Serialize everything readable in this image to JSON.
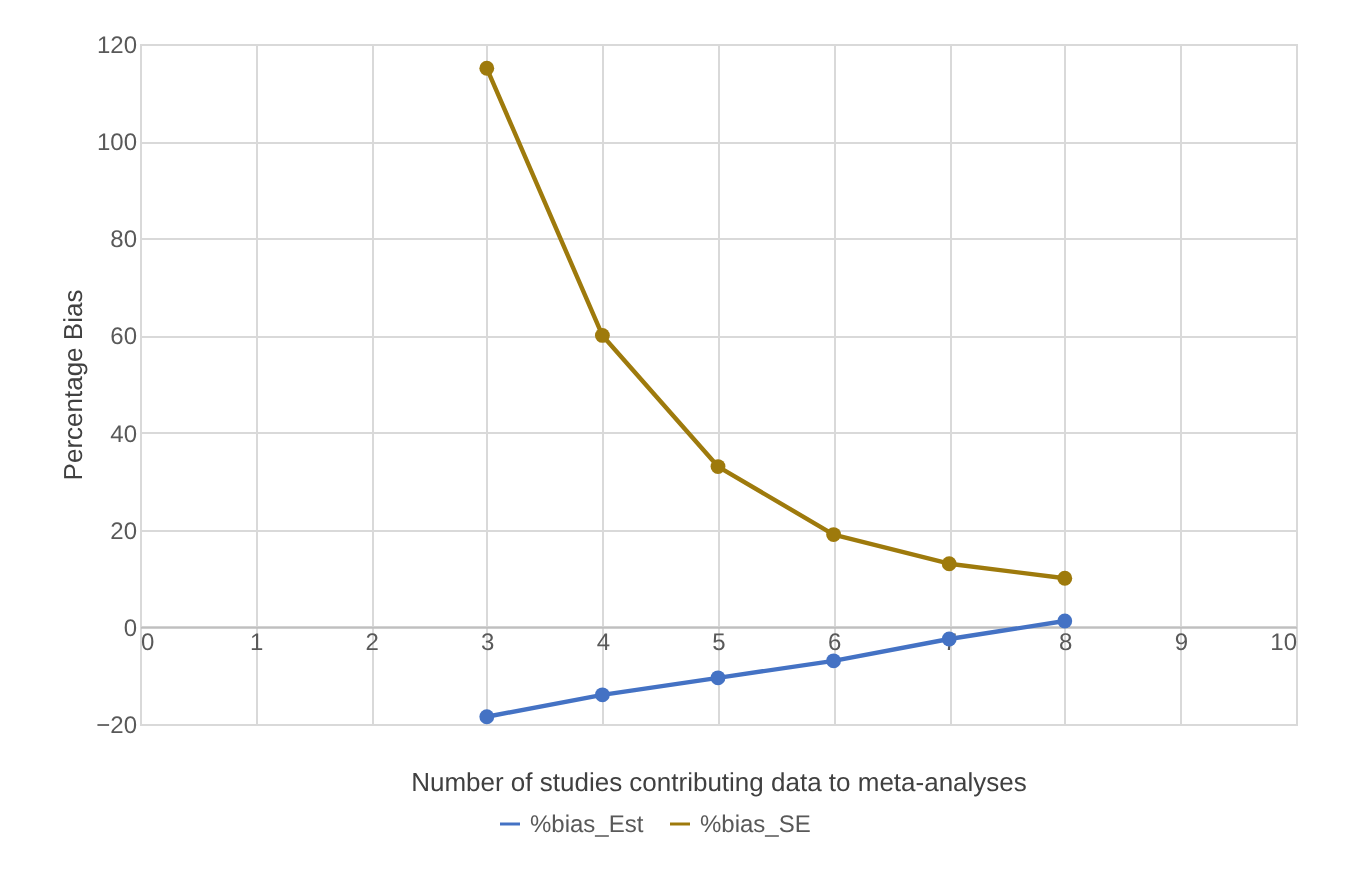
{
  "chart_data": {
    "type": "line",
    "xlabel": "Number of studies contributing data to meta-analyses",
    "ylabel": "Percentage Bias",
    "x": [
      3,
      4,
      5,
      6,
      7,
      8
    ],
    "series": [
      {
        "name": "%bias_Est",
        "color": "#4472c4",
        "values": [
          -18.5,
          -14,
          -10.5,
          -7,
          -2.5,
          1.2
        ]
      },
      {
        "name": "%bias_SE",
        "color": "#9e7a0c",
        "values": [
          115,
          60,
          33,
          19,
          13,
          10
        ]
      }
    ],
    "xlim": [
      0,
      10
    ],
    "xticks": [
      0,
      1,
      2,
      3,
      4,
      5,
      6,
      7,
      8,
      9,
      10
    ],
    "ylim": [
      -20,
      120
    ],
    "yticks": [
      -20,
      0,
      20,
      40,
      60,
      80,
      100,
      120
    ],
    "grid": true,
    "legend": "bottom",
    "marker": "circle",
    "line_style": "solid"
  }
}
